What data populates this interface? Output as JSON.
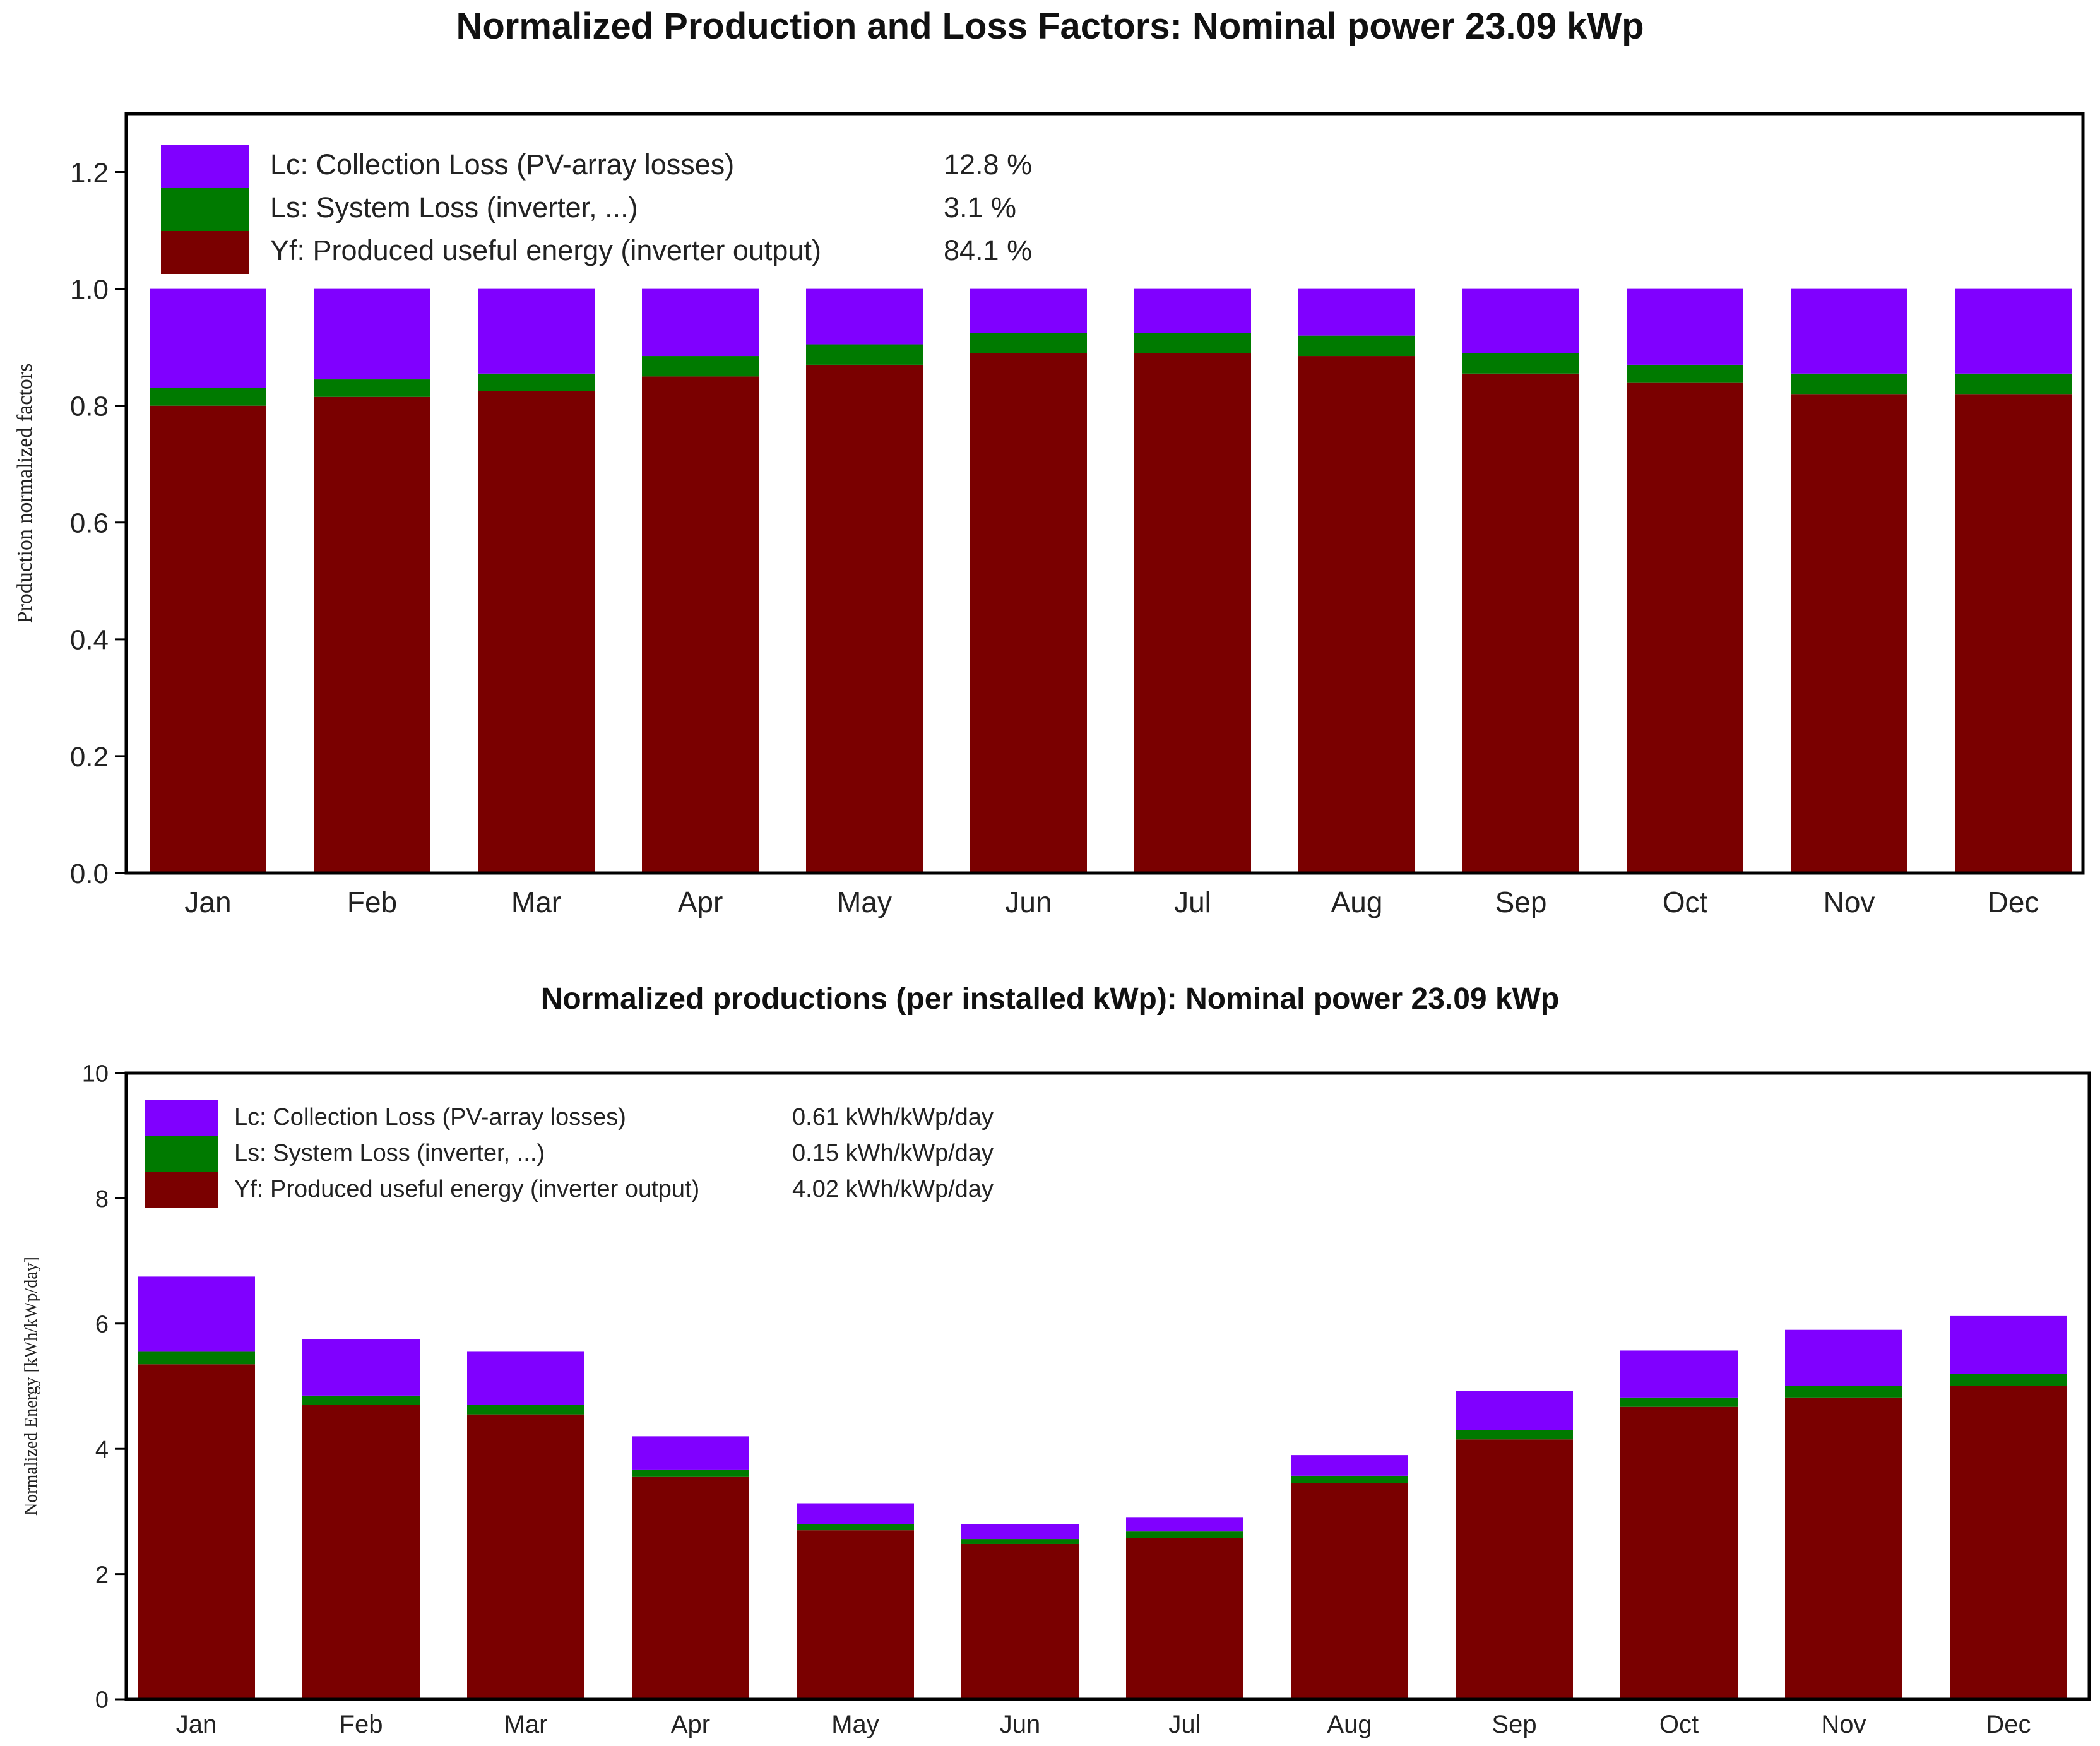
{
  "colors": {
    "lc": "#8000ff",
    "ls": "#007a00",
    "yf": "#7a0000",
    "frame": "#000000",
    "background": "#ffffff"
  },
  "chart_data": [
    {
      "type": "bar",
      "stacked": true,
      "title": "Normalized Production and Loss Factors:  Nominal power 23.09 kWp",
      "ylabel": "Production normalized factors",
      "xlabel": "",
      "ylim": [
        0,
        1.3
      ],
      "yticks": [
        "0.0",
        "0.2",
        "0.4",
        "0.6",
        "0.8",
        "1.0",
        "1.2"
      ],
      "grid": false,
      "legend_position": "top-left",
      "categories": [
        "Jan",
        "Feb",
        "Mar",
        "Apr",
        "May",
        "Jun",
        "Jul",
        "Aug",
        "Sep",
        "Oct",
        "Nov",
        "Dec"
      ],
      "series": [
        {
          "name": "Yf: Produced useful energy  (inverter output)",
          "summary": "84.1 %",
          "color": "#7a0000",
          "values": [
            0.8,
            0.815,
            0.825,
            0.85,
            0.87,
            0.89,
            0.89,
            0.885,
            0.855,
            0.84,
            0.82,
            0.82
          ]
        },
        {
          "name": "Ls: System Loss  (inverter, ...)",
          "summary": "3.1 %",
          "color": "#007a00",
          "values": [
            0.03,
            0.03,
            0.03,
            0.035,
            0.035,
            0.035,
            0.035,
            0.035,
            0.035,
            0.03,
            0.035,
            0.035
          ]
        },
        {
          "name": "Lc: Collection Loss (PV-array losses)",
          "summary": "12.8 %",
          "color": "#8000ff",
          "values": [
            0.17,
            0.155,
            0.145,
            0.115,
            0.095,
            0.075,
            0.075,
            0.08,
            0.11,
            0.13,
            0.145,
            0.145
          ]
        }
      ]
    },
    {
      "type": "bar",
      "stacked": true,
      "title": "Normalized productions (per installed kWp):  Nominal power 23.09 kWp",
      "ylabel": "Normalized Energy  [kWh/kWp/day]",
      "xlabel": "",
      "ylim": [
        0,
        10
      ],
      "yticks": [
        "0",
        "2",
        "4",
        "6",
        "8",
        "10"
      ],
      "grid": false,
      "legend_position": "top-left",
      "categories": [
        "Jan",
        "Feb",
        "Mar",
        "Apr",
        "May",
        "Jun",
        "Jul",
        "Aug",
        "Sep",
        "Oct",
        "Nov",
        "Dec"
      ],
      "series": [
        {
          "name": "Yf: Produced useful energy  (inverter output)",
          "summary": "4.02 kWh/kWp/day",
          "color": "#7a0000",
          "values": [
            5.35,
            4.7,
            4.55,
            3.55,
            2.7,
            2.48,
            2.58,
            3.45,
            4.15,
            4.67,
            4.82,
            5.0
          ]
        },
        {
          "name": "Ls: System Loss  (inverter, ...)",
          "summary": "0.15 kWh/kWp/day",
          "color": "#007a00",
          "values": [
            0.2,
            0.15,
            0.15,
            0.12,
            0.1,
            0.08,
            0.1,
            0.12,
            0.15,
            0.15,
            0.18,
            0.2
          ]
        },
        {
          "name": "Lc: Collection Loss (PV-array losses)",
          "summary": "0.61 kWh/kWp/day",
          "color": "#8000ff",
          "values": [
            1.2,
            0.9,
            0.85,
            0.53,
            0.33,
            0.24,
            0.22,
            0.33,
            0.62,
            0.75,
            0.9,
            0.92
          ]
        }
      ]
    }
  ]
}
